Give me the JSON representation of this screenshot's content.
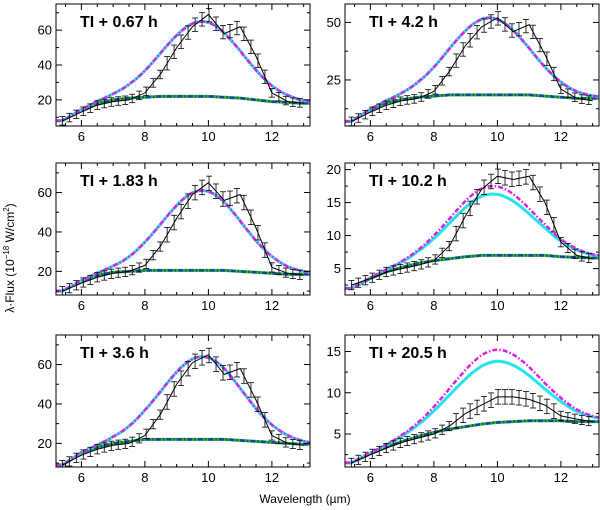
{
  "figure": {
    "xlabel": "Wavelength (µm)",
    "ylabel_main": "λ·Flux (10",
    "ylabel_exp": "−18",
    "ylabel_tail": " W/cm",
    "ylabel_sup2": "2",
    "ylabel_close": ")"
  },
  "colors": {
    "observed": "#000000",
    "continuum_green": "#22bb22",
    "continuum_blue": "#1a3fa8",
    "model_cyan": "#22e4ee",
    "model_magenta": "#e020e0"
  },
  "chart_data": [
    {
      "type": "line",
      "title": "TI + 0.67 h",
      "xlim": [
        5.2,
        13.2
      ],
      "ylim": [
        5,
        75
      ],
      "xticks": [
        6,
        8,
        10,
        12
      ],
      "yticks": [
        20,
        40,
        60
      ],
      "obs_x": [
        5.4,
        6,
        6.5,
        7,
        7.5,
        8,
        8.5,
        9,
        9.5,
        10,
        10.5,
        11,
        11.5,
        12,
        12.5,
        13
      ],
      "obs_y": [
        8,
        13,
        17,
        19,
        20,
        24,
        35,
        50,
        62,
        69,
        58,
        62,
        45,
        24,
        19,
        18
      ],
      "model_peak": 65,
      "model_peak_x": 9.8,
      "model_width": 1.25,
      "cyan_offset": 0,
      "cont_y": [
        8,
        14,
        18,
        20,
        21,
        21.5,
        22,
        22,
        22,
        22,
        21.5,
        21,
        20,
        19,
        18.5,
        18
      ]
    },
    {
      "type": "line",
      "title": "TI + 4.2 h",
      "xlim": [
        5.2,
        13.2
      ],
      "ylim": [
        5,
        58
      ],
      "xticks": [
        6,
        8,
        10,
        12
      ],
      "yticks": [
        25,
        50
      ],
      "obs_x": [
        5.4,
        6,
        6.5,
        7,
        7.5,
        8,
        8.5,
        9,
        9.5,
        10,
        10.5,
        11,
        11.5,
        12,
        12.5,
        13
      ],
      "obs_y": [
        7,
        11,
        14,
        16,
        17,
        20,
        29,
        40,
        48,
        52,
        46,
        49,
        36,
        21,
        17,
        16
      ],
      "model_peak": 52,
      "model_peak_x": 9.75,
      "model_width": 1.25,
      "cyan_offset": 0,
      "cont_y": [
        7,
        12,
        15,
        16.5,
        17.5,
        18,
        18.5,
        18.5,
        18.5,
        18.5,
        18.5,
        18.5,
        18,
        17.5,
        17,
        17
      ]
    },
    {
      "type": "line",
      "title": "TI + 1.83 h",
      "xlim": [
        5.2,
        13.2
      ],
      "ylim": [
        8,
        75
      ],
      "xticks": [
        6,
        8,
        10,
        12
      ],
      "yticks": [
        20,
        40,
        60
      ],
      "obs_x": [
        5.4,
        6,
        6.5,
        7,
        7.5,
        8,
        8.5,
        9,
        9.5,
        10,
        10.5,
        11,
        11.5,
        12,
        12.5,
        13
      ],
      "obs_y": [
        10,
        14,
        17,
        19,
        20,
        23,
        33,
        47,
        59,
        65,
        56,
        59,
        42,
        22,
        19,
        18
      ],
      "model_peak": 61,
      "model_peak_x": 9.8,
      "model_width": 1.25,
      "cyan_offset": 0,
      "cont_y": [
        10,
        15,
        18,
        19.5,
        20,
        20.5,
        20.5,
        20.5,
        20.5,
        20.5,
        20.5,
        20,
        19.5,
        19,
        18.5,
        18.5
      ]
    },
    {
      "type": "line",
      "title": "TI + 10.2 h",
      "xlim": [
        5.2,
        13.2
      ],
      "ylim": [
        1,
        21
      ],
      "xticks": [
        6,
        8,
        10,
        12
      ],
      "yticks": [
        5,
        10,
        15,
        20
      ],
      "obs_x": [
        5.4,
        6,
        6.5,
        7,
        7.5,
        8,
        8.5,
        9,
        9.5,
        10,
        10.5,
        11,
        11.5,
        12,
        12.5,
        13
      ],
      "obs_y": [
        2.5,
        3.5,
        4.5,
        5,
        5.5,
        6.2,
        8.5,
        13,
        17,
        19,
        18.5,
        19,
        15,
        9,
        7,
        6.5
      ],
      "model_peak": 17.5,
      "model_peak_x": 9.85,
      "model_width": 1.3,
      "cyan_offset": -1.2,
      "cont_y": [
        2,
        3.5,
        4.5,
        5.2,
        5.8,
        6.2,
        6.5,
        6.8,
        7,
        7,
        7,
        7,
        7,
        6.8,
        6.7,
        6.6
      ]
    },
    {
      "type": "line",
      "title": "TI + 3.6 h",
      "xlim": [
        5.2,
        13.2
      ],
      "ylim": [
        8,
        75
      ],
      "xticks": [
        6,
        8,
        10,
        12
      ],
      "yticks": [
        20,
        40,
        60
      ],
      "obs_x": [
        5.4,
        6,
        6.5,
        7,
        7.5,
        8,
        8.5,
        9,
        9.5,
        10,
        10.5,
        11,
        11.5,
        12,
        12.5,
        13
      ],
      "obs_y": [
        9,
        14,
        17,
        19,
        20,
        24,
        35,
        50,
        61,
        65,
        55,
        58,
        42,
        24,
        20,
        19
      ],
      "model_peak": 64,
      "model_peak_x": 9.8,
      "model_width": 1.25,
      "cyan_offset": 0,
      "cont_y": [
        9,
        15,
        18,
        20,
        21,
        22,
        22,
        22,
        22,
        22,
        22,
        21.5,
        21,
        20.5,
        20,
        19.5
      ]
    },
    {
      "type": "line",
      "title": "TI + 20.5 h",
      "xlim": [
        5.2,
        13.2
      ],
      "ylim": [
        1,
        17
      ],
      "xticks": [
        6,
        8,
        10,
        12
      ],
      "yticks": [
        5,
        10,
        15
      ],
      "obs_x": [
        5.4,
        6,
        6.5,
        7,
        7.5,
        8,
        8.5,
        9,
        9.5,
        10,
        10.5,
        11,
        11.5,
        12,
        12.5,
        13
      ],
      "obs_y": [
        1.5,
        2.5,
        3.3,
        4,
        4.5,
        5,
        6,
        7.5,
        8.5,
        9.5,
        9.5,
        9.2,
        8.5,
        7.2,
        6.8,
        6.5
      ],
      "model_peak": 15.2,
      "model_peak_x": 9.95,
      "model_width": 1.35,
      "cyan_offset": -1.4,
      "cont_y": [
        1.5,
        2.6,
        3.4,
        4.1,
        4.7,
        5.2,
        5.6,
        5.9,
        6.2,
        6.4,
        6.5,
        6.6,
        6.6,
        6.6,
        6.5,
        6.5
      ]
    }
  ]
}
